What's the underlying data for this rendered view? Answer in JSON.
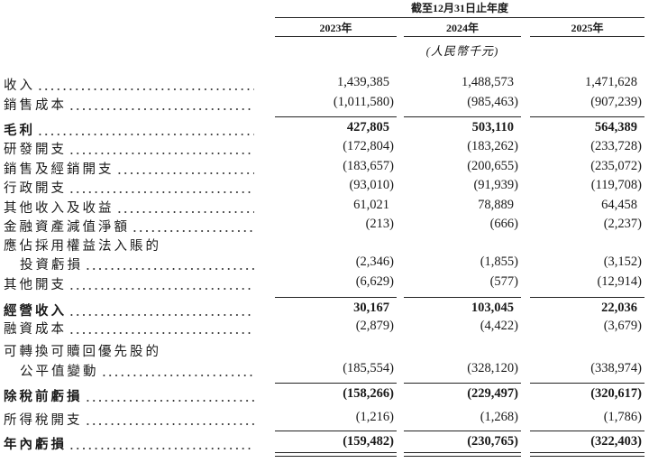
{
  "header": {
    "period": "截至12月31日止年度",
    "columns": [
      "2023年",
      "2024年",
      "2025年"
    ],
    "unit": "(人民幣千元)"
  },
  "table": {
    "rows": [
      {
        "label": "收入",
        "values": [
          "1,439,385",
          "1,488,573",
          "1,471,628"
        ]
      },
      {
        "label": "銷售成本",
        "values": [
          "(1,011,580)",
          "(985,463)",
          "(907,239)"
        ]
      },
      {
        "label": "毛利",
        "values": [
          "427,805",
          "503,110",
          "564,389"
        ],
        "bold": true
      },
      {
        "label": "研發開支",
        "values": [
          "(172,804)",
          "(183,262)",
          "(233,728)"
        ]
      },
      {
        "label": "銷售及經銷開支",
        "values": [
          "(183,657)",
          "(200,655)",
          "(235,072)"
        ]
      },
      {
        "label": "行政開支",
        "values": [
          "(93,010)",
          "(91,939)",
          "(119,708)"
        ]
      },
      {
        "label": "其他收入及收益",
        "values": [
          "61,021",
          "78,889",
          "64,458"
        ]
      },
      {
        "label": "金融資產減值淨額",
        "values": [
          "(213)",
          "(666)",
          "(2,237)"
        ]
      },
      {
        "label": "應佔採用權益法入賬的"
      },
      {
        "label": "投資虧損",
        "values": [
          "(2,346)",
          "(1,855)",
          "(3,152)"
        ]
      },
      {
        "label": "其他開支",
        "values": [
          "(6,629)",
          "(577)",
          "(12,914)"
        ]
      },
      {
        "label": "經營收入",
        "values": [
          "30,167",
          "103,045",
          "22,036"
        ],
        "bold": true
      },
      {
        "label": "融資成本",
        "values": [
          "(2,879)",
          "(4,422)",
          "(3,679)"
        ]
      },
      {
        "label": "可轉換可贖回優先股的"
      },
      {
        "label": "公平值變動",
        "values": [
          "(185,554)",
          "(328,120)",
          "(338,974)"
        ]
      },
      {
        "label": "除稅前虧損",
        "values": [
          "(158,266)",
          "(229,497)",
          "(320,617)"
        ],
        "bold": true
      },
      {
        "label": "所得稅開支",
        "values": [
          "(1,216)",
          "(1,268)",
          "(1,786)"
        ]
      },
      {
        "label": "年內虧損",
        "values": [
          "(159,482)",
          "(230,765)",
          "(322,403)"
        ],
        "bold": true
      }
    ]
  }
}
